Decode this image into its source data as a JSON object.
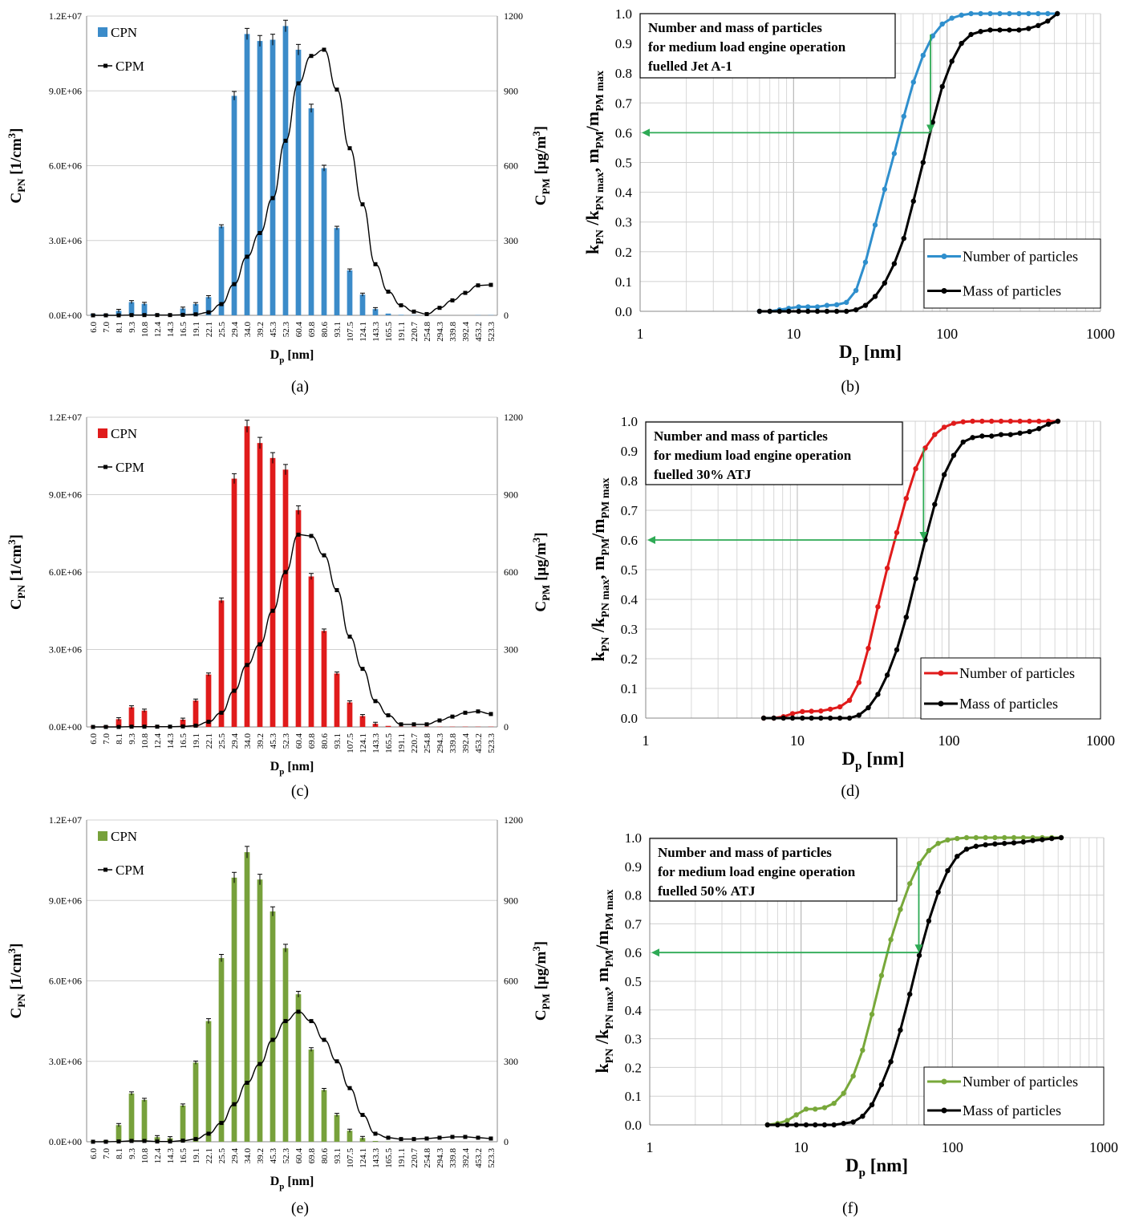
{
  "figure": {
    "panels": [
      "(a)",
      "(b)",
      "(c)",
      "(d)",
      "(e)",
      "(f)"
    ]
  },
  "chart_data": [
    {
      "id": "a",
      "type": "bar",
      "panel_label": "(a)",
      "bar_color": "#3b8bc9",
      "xlabel_main": "D",
      "xlabel_sub": "p",
      "xlabel_unit": " [nm]",
      "ylabel_left": {
        "main": "C",
        "sub": "PN",
        "unit": "  [1/cm",
        "sup": "3",
        "close": "]"
      },
      "ylabel_right": {
        "main": "C",
        "sub": "PM",
        "unit": " [μg/m",
        "sup": "3",
        "close": "]"
      },
      "left_ticks": [
        "0.0E+00",
        "3.0E+06",
        "6.0E+06",
        "9.0E+06",
        "1.2E+07"
      ],
      "right_ticks": [
        "0",
        "300",
        "600",
        "900",
        "1200"
      ],
      "ylim_left": [
        0,
        12000000
      ],
      "ylim_right": [
        0,
        1200
      ],
      "legend": [
        "CPN",
        "CPM"
      ],
      "categories": [
        "6.0",
        "7.0",
        "8.1",
        "9.3",
        "10.8",
        "12.4",
        "14.3",
        "16.5",
        "19.1",
        "22.1",
        "25.5",
        "29.4",
        "34.0",
        "39.2",
        "45.3",
        "52.3",
        "60.4",
        "69.8",
        "80.6",
        "93.1",
        "107.5",
        "124.1",
        "143.3",
        "165.5",
        "191.1",
        "220.7",
        "254.8",
        "294.3",
        "339.8",
        "392.4",
        "453.2",
        "523.3"
      ],
      "series": [
        {
          "name": "CPN",
          "axis": "left",
          "values": [
            50000,
            50000,
            180000,
            530000,
            460000,
            50000,
            40000,
            270000,
            450000,
            730000,
            3560000,
            8800000,
            11280000,
            11000000,
            11050000,
            11600000,
            10650000,
            8300000,
            5900000,
            3500000,
            1800000,
            830000,
            250000,
            70000,
            20000,
            10000,
            0,
            0,
            0,
            0,
            10000,
            10000
          ]
        },
        {
          "name": "CPM",
          "axis": "right",
          "values": [
            0,
            0,
            0,
            1,
            1,
            1,
            1,
            2,
            4,
            12,
            45,
            125,
            235,
            330,
            470,
            700,
            930,
            1040,
            1065,
            905,
            670,
            445,
            205,
            95,
            40,
            15,
            5,
            30,
            60,
            90,
            120,
            122
          ]
        }
      ]
    },
    {
      "id": "b",
      "type": "line",
      "panel_label": "(b)",
      "line_color": "#2f8fcd",
      "xlabel_main": "D",
      "xlabel_sub": "p",
      "xlabel_unit": " [nm]",
      "x_scale": "log",
      "xlim": [
        1,
        1000
      ],
      "x_ticks": [
        "1",
        "10",
        "100",
        "1000"
      ],
      "ylim": [
        0,
        1
      ],
      "y_ticks": [
        "0.0",
        "0.1",
        "0.2",
        "0.3",
        "0.4",
        "0.5",
        "0.6",
        "0.7",
        "0.8",
        "0.9",
        "1.0"
      ],
      "annotation": [
        "Number  and mass of particles",
        "for medium load engine operation",
        "fuelled Jet A-1"
      ],
      "arrow": {
        "x": 78,
        "y_from": 0.93,
        "y_to": 0.6
      },
      "legend": [
        "Number of particles",
        "Mass of particles"
      ],
      "x": [
        6.0,
        7.0,
        8.1,
        9.3,
        10.8,
        12.4,
        14.3,
        16.5,
        19.1,
        22.1,
        25.5,
        29.4,
        34.0,
        39.2,
        45.3,
        52.3,
        60.4,
        69.8,
        80.6,
        93.1,
        107.5,
        124.1,
        143.3,
        165.5,
        191.1,
        220.7,
        254.8,
        294.3,
        339.8,
        392.4,
        453.2,
        523.3
      ],
      "series": [
        {
          "name": "Number of particles",
          "values": [
            0.0,
            0.0,
            0.005,
            0.01,
            0.015,
            0.015,
            0.015,
            0.02,
            0.022,
            0.03,
            0.07,
            0.165,
            0.29,
            0.41,
            0.53,
            0.655,
            0.77,
            0.86,
            0.925,
            0.965,
            0.985,
            0.995,
            1.0,
            1.0,
            1.0,
            1.0,
            1.0,
            1.0,
            1.0,
            1.0,
            1.0,
            1.0
          ]
        },
        {
          "name": "Mass of particles",
          "values": [
            0.0,
            0.0,
            0.0,
            0.0,
            0.0,
            0.0,
            0.0,
            0.0,
            0.0,
            0.0,
            0.005,
            0.02,
            0.05,
            0.095,
            0.16,
            0.245,
            0.37,
            0.5,
            0.635,
            0.755,
            0.84,
            0.9,
            0.93,
            0.94,
            0.945,
            0.945,
            0.945,
            0.945,
            0.95,
            0.96,
            0.975,
            1.0
          ]
        }
      ]
    },
    {
      "id": "c",
      "type": "bar",
      "panel_label": "(c)",
      "bar_color": "#e01b1b",
      "xlabel_main": "D",
      "xlabel_sub": "p",
      "xlabel_unit": " [nm]",
      "ylabel_left": {
        "main": "C",
        "sub": "PN",
        "unit": "  [1/cm",
        "sup": "3",
        "close": "]"
      },
      "ylabel_right": {
        "main": "C",
        "sub": "PM",
        "unit": " [μg/m",
        "sup": "3",
        "close": "]"
      },
      "left_ticks": [
        "0.0E+00",
        "3.0E+06",
        "6.0E+06",
        "9.0E+06",
        "1.2E+07"
      ],
      "right_ticks": [
        "0",
        "300",
        "600",
        "900",
        "1200"
      ],
      "ylim_left": [
        0,
        12000000
      ],
      "ylim_right": [
        0,
        1200
      ],
      "legend": [
        "CPN",
        "CPM"
      ],
      "categories": [
        "6.0",
        "7.0",
        "8.1",
        "9.3",
        "10.8",
        "12.4",
        "14.3",
        "16.5",
        "19.1",
        "22.1",
        "25.5",
        "29.4",
        "34.0",
        "39.2",
        "45.3",
        "52.3",
        "60.4",
        "69.8",
        "80.6",
        "93.1",
        "107.5",
        "124.1",
        "143.3",
        "165.5",
        "191.1",
        "220.7",
        "254.8",
        "294.3",
        "339.8",
        "392.4",
        "453.2",
        "523.3"
      ],
      "series": [
        {
          "name": "CPN",
          "axis": "left",
          "values": [
            20000,
            40000,
            300000,
            760000,
            630000,
            40000,
            20000,
            280000,
            1020000,
            2030000,
            4900000,
            9620000,
            11650000,
            11000000,
            10420000,
            9970000,
            8400000,
            5830000,
            3720000,
            2070000,
            950000,
            420000,
            120000,
            40000,
            10000,
            10000,
            10000,
            10000,
            10000,
            10000,
            10000,
            10000
          ]
        },
        {
          "name": "CPM",
          "axis": "right",
          "values": [
            0,
            0,
            0,
            1,
            1,
            1,
            1,
            2,
            5,
            20,
            55,
            140,
            240,
            320,
            450,
            600,
            745,
            740,
            665,
            530,
            350,
            225,
            100,
            45,
            10,
            10,
            10,
            25,
            40,
            55,
            60,
            50
          ]
        }
      ]
    },
    {
      "id": "d",
      "type": "line",
      "panel_label": "(d)",
      "line_color": "#e01b1b",
      "xlabel_main": "D",
      "xlabel_sub": "p",
      "xlabel_unit": " [nm]",
      "x_scale": "log",
      "xlim": [
        1,
        1000
      ],
      "x_ticks": [
        "1",
        "10",
        "100",
        "1000"
      ],
      "ylim": [
        0,
        1
      ],
      "y_ticks": [
        "0.0",
        "0.1",
        "0.2",
        "0.3",
        "0.4",
        "0.5",
        "0.6",
        "0.7",
        "0.8",
        "0.9",
        "1.0"
      ],
      "annotation": [
        "Number  and mass of particles",
        "for medium load engine operation",
        "fuelled 30% ATJ"
      ],
      "arrow": {
        "x": 68,
        "y_from": 0.91,
        "y_to": 0.6
      },
      "legend": [
        "Number of particles",
        "Mass of particles"
      ],
      "x": [
        6.0,
        7.0,
        8.1,
        9.3,
        10.8,
        12.4,
        14.3,
        16.5,
        19.1,
        22.1,
        25.5,
        29.4,
        34.0,
        39.2,
        45.3,
        52.3,
        60.4,
        69.8,
        80.6,
        93.1,
        107.5,
        124.1,
        143.3,
        165.5,
        191.1,
        220.7,
        254.8,
        294.3,
        339.8,
        392.4,
        453.2,
        523.3
      ],
      "series": [
        {
          "name": "Number of particles",
          "values": [
            0.0,
            0.0,
            0.005,
            0.015,
            0.022,
            0.023,
            0.024,
            0.03,
            0.038,
            0.06,
            0.12,
            0.235,
            0.375,
            0.505,
            0.625,
            0.74,
            0.84,
            0.91,
            0.955,
            0.98,
            0.993,
            0.998,
            1.0,
            1.0,
            1.0,
            1.0,
            1.0,
            1.0,
            1.0,
            1.0,
            1.0,
            1.0
          ]
        },
        {
          "name": "Mass of particles",
          "values": [
            0.0,
            0.0,
            0.0,
            0.0,
            0.0,
            0.0,
            0.0,
            0.0,
            0.0,
            0.0,
            0.01,
            0.035,
            0.08,
            0.145,
            0.23,
            0.34,
            0.47,
            0.6,
            0.72,
            0.82,
            0.885,
            0.93,
            0.945,
            0.95,
            0.95,
            0.955,
            0.955,
            0.96,
            0.965,
            0.975,
            0.99,
            1.0
          ]
        }
      ]
    },
    {
      "id": "e",
      "type": "bar",
      "panel_label": "(e)",
      "bar_color": "#77a13b",
      "xlabel_main": "D",
      "xlabel_sub": "p",
      "xlabel_unit": " [nm]",
      "ylabel_left": {
        "main": "C",
        "sub": "PN",
        "unit": "  [1/cm",
        "sup": "3",
        "close": "]"
      },
      "ylabel_right": {
        "main": "C",
        "sub": "PM",
        "unit": " [μg/m",
        "sup": "3",
        "close": "]"
      },
      "left_ticks": [
        "0.0E+00",
        "3.0E+06",
        "6.0E+06",
        "9.0E+06",
        "1.2E+07"
      ],
      "right_ticks": [
        "0",
        "300",
        "600",
        "900",
        "1200"
      ],
      "ylim_left": [
        0,
        12000000
      ],
      "ylim_right": [
        0,
        1200
      ],
      "legend": [
        "CPN",
        "CPM"
      ],
      "categories": [
        "6.0",
        "7.0",
        "8.1",
        "9.3",
        "10.8",
        "12.4",
        "14.3",
        "16.5",
        "19.1",
        "22.1",
        "25.5",
        "29.4",
        "34.0",
        "39.2",
        "45.3",
        "52.3",
        "60.4",
        "69.8",
        "80.6",
        "93.1",
        "107.5",
        "124.1",
        "143.3",
        "165.5",
        "191.1",
        "220.7",
        "254.8",
        "294.3",
        "339.8",
        "392.4",
        "453.2",
        "523.3"
      ],
      "series": [
        {
          "name": "CPN",
          "axis": "left",
          "values": [
            20000,
            50000,
            620000,
            1800000,
            1560000,
            170000,
            130000,
            1350000,
            2950000,
            4500000,
            6850000,
            9850000,
            10800000,
            9780000,
            8590000,
            7220000,
            5500000,
            3440000,
            1930000,
            1000000,
            410000,
            140000,
            30000,
            10000,
            0,
            0,
            0,
            0,
            0,
            0,
            0,
            0
          ]
        },
        {
          "name": "CPM",
          "axis": "right",
          "values": [
            0,
            0,
            1,
            3,
            3,
            1,
            1,
            4,
            10,
            30,
            70,
            140,
            220,
            290,
            380,
            450,
            485,
            450,
            380,
            300,
            200,
            100,
            30,
            15,
            10,
            10,
            12,
            15,
            18,
            18,
            15,
            12
          ]
        }
      ]
    },
    {
      "id": "f",
      "type": "line",
      "panel_label": "(f)",
      "line_color": "#78a83a",
      "xlabel_main": "D",
      "xlabel_sub": "p",
      "xlabel_unit": " [nm]",
      "x_scale": "log",
      "xlim": [
        1,
        1000
      ],
      "x_ticks": [
        "1",
        "10",
        "100",
        "1000"
      ],
      "ylim": [
        0,
        1
      ],
      "y_ticks": [
        "0.0",
        "0.1",
        "0.2",
        "0.3",
        "0.4",
        "0.5",
        "0.6",
        "0.7",
        "0.8",
        "0.9",
        "1.0"
      ],
      "annotation": [
        "Number  and mass of particles",
        "for medium  load engine operation",
        "fuelled 50% ATJ"
      ],
      "arrow": {
        "x": 60,
        "y_from": 0.91,
        "y_to": 0.6
      },
      "legend": [
        "Number of particles",
        "Mass of particles"
      ],
      "x": [
        6.0,
        7.0,
        8.1,
        9.3,
        10.8,
        12.4,
        14.3,
        16.5,
        19.1,
        22.1,
        25.5,
        29.4,
        34.0,
        39.2,
        45.3,
        52.3,
        60.4,
        69.8,
        80.6,
        93.1,
        107.5,
        124.1,
        143.3,
        165.5,
        191.1,
        220.7,
        254.8,
        294.3,
        339.8,
        392.4,
        453.2,
        523.3
      ],
      "series": [
        {
          "name": "Number of particles",
          "values": [
            0.0,
            0.005,
            0.015,
            0.035,
            0.055,
            0.055,
            0.06,
            0.075,
            0.11,
            0.17,
            0.26,
            0.385,
            0.52,
            0.645,
            0.75,
            0.84,
            0.91,
            0.955,
            0.98,
            0.992,
            0.997,
            1.0,
            1.0,
            1.0,
            1.0,
            1.0,
            1.0,
            1.0,
            1.0,
            1.0,
            1.0,
            1.0
          ]
        },
        {
          "name": "Mass of particles",
          "values": [
            0.0,
            0.0,
            0.0,
            0.0,
            0.0,
            0.0,
            0.0,
            0.0,
            0.005,
            0.01,
            0.03,
            0.07,
            0.14,
            0.22,
            0.33,
            0.455,
            0.59,
            0.71,
            0.81,
            0.885,
            0.935,
            0.96,
            0.97,
            0.975,
            0.978,
            0.98,
            0.982,
            0.985,
            0.99,
            0.993,
            0.997,
            1.0
          ]
        }
      ]
    }
  ]
}
